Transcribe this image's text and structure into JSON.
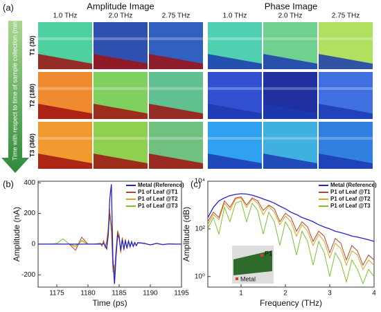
{
  "figure": {
    "panel_labels": [
      "(a)",
      "(b)",
      "(c)"
    ],
    "amplitude_title": "Amplitude Image",
    "phase_title": "Phase Image",
    "frequencies": [
      "1.0 THz",
      "2.0 THz",
      "2.75 THz"
    ],
    "time_labels": [
      "T1 (30)",
      "T2 (180)",
      "T3 (360)"
    ],
    "arrow_label": "Time with respect to time of sample collection (min)"
  },
  "chart_data": [
    {
      "type": "line",
      "xlabel": "Time (ps)",
      "ylabel": "Amplitude (nA)",
      "x": [
        1172,
        1173,
        1174,
        1175,
        1176,
        1177,
        1178,
        1179,
        1180,
        1181,
        1182,
        1182.25,
        1182.5,
        1182.75,
        1183,
        1183.25,
        1183.5,
        1183.75,
        1184,
        1184.25,
        1184.5,
        1184.75,
        1185,
        1185.25,
        1185.5,
        1185.75,
        1186,
        1186.25,
        1186.5,
        1186.75,
        1187,
        1187.25,
        1187.5,
        1187.75,
        1188,
        1189,
        1190,
        1191,
        1192,
        1193,
        1194,
        1195
      ],
      "xlim": [
        1172,
        1195
      ],
      "xticks": [
        1175,
        1180,
        1185,
        1190,
        1195
      ],
      "ylim": [
        -280,
        410
      ],
      "yticks": [
        -200,
        0,
        200,
        400
      ],
      "legend": "upper right",
      "series": [
        {
          "name": "Metal (Reference)",
          "color": "#2222cc",
          "values": [
            0,
            0,
            0,
            0,
            0,
            0,
            0,
            0,
            0,
            0,
            0,
            0,
            5,
            -10,
            -30,
            60,
            300,
            390,
            -100,
            -260,
            -80,
            60,
            40,
            -40,
            30,
            -30,
            20,
            -25,
            20,
            -15,
            15,
            -15,
            10,
            -10,
            10,
            5,
            -5,
            5,
            -3,
            2,
            0,
            0
          ]
        },
        {
          "name": "P1 of Leaf @T1",
          "color": "#b0452a",
          "values": [
            0,
            0,
            0,
            0,
            0,
            0,
            -40,
            45,
            0,
            0,
            5,
            -10,
            20,
            -20,
            10,
            80,
            200,
            120,
            -150,
            -200,
            -50,
            80,
            60,
            -50,
            40,
            -40,
            30,
            -30,
            20,
            -20,
            15,
            -15,
            10,
            -10,
            10,
            5,
            -5,
            5,
            -3,
            2,
            0,
            0
          ]
        },
        {
          "name": "P1 of Leaf @T2",
          "color": "#e0a020",
          "values": [
            0,
            0,
            0,
            0,
            0,
            0,
            -20,
            25,
            0,
            0,
            5,
            -15,
            25,
            -20,
            20,
            120,
            230,
            100,
            -180,
            -170,
            -30,
            90,
            50,
            -60,
            45,
            -35,
            35,
            -30,
            25,
            -20,
            20,
            -15,
            12,
            -10,
            8,
            5,
            -5,
            4,
            -3,
            2,
            0,
            0
          ]
        },
        {
          "name": "P1 of Leaf @T3",
          "color": "#7cc22a",
          "values": [
            0,
            0,
            0,
            5,
            35,
            0,
            -10,
            20,
            0,
            0,
            5,
            -10,
            15,
            -15,
            15,
            100,
            180,
            80,
            -120,
            -160,
            -40,
            70,
            50,
            -45,
            35,
            -35,
            30,
            -25,
            20,
            -20,
            15,
            -12,
            10,
            -8,
            8,
            4,
            -4,
            4,
            -2,
            2,
            0,
            0
          ]
        }
      ]
    },
    {
      "type": "line",
      "xlabel": "Frequency (THz)",
      "ylabel": "Amplitude (dB)",
      "log_y": true,
      "x": [
        0.25,
        0.375,
        0.5,
        0.625,
        0.75,
        0.875,
        1,
        1.125,
        1.25,
        1.375,
        1.5,
        1.625,
        1.75,
        1.875,
        2,
        2.125,
        2.25,
        2.375,
        2.5,
        2.625,
        2.75,
        2.875,
        3,
        3.125,
        3.25,
        3.375,
        3.5,
        3.625,
        3.75,
        3.875,
        4
      ],
      "xlim": [
        0.25,
        4
      ],
      "xticks": [
        1,
        2,
        3,
        4
      ],
      "ylim": [
        0.36,
        10000
      ],
      "yticks": [
        {
          "value": 1,
          "label": "10⁰"
        },
        {
          "value": 100,
          "label": "10²"
        },
        {
          "value": 10000,
          "label": "10⁴"
        }
      ],
      "legend": "upper right",
      "annotations": [
        "P1",
        "Metal"
      ],
      "series": [
        {
          "name": "Metal (Reference)",
          "color": "#2222cc",
          "values": [
            300,
            800,
            1500,
            2000,
            2500,
            2800,
            3000,
            2900,
            2600,
            2200,
            1800,
            1500,
            1200,
            900,
            700,
            500,
            400,
            300,
            250,
            200,
            150,
            120,
            100,
            80,
            70,
            60,
            50,
            45,
            40,
            35,
            30
          ]
        },
        {
          "name": "P1 of Leaf @T1",
          "color": "#b0452a",
          "values": [
            200,
            500,
            300,
            1500,
            800,
            2000,
            2200,
            1000,
            2000,
            1500,
            600,
            1000,
            700,
            200,
            450,
            300,
            80,
            200,
            120,
            30,
            80,
            50,
            10,
            40,
            25,
            5,
            20,
            12,
            3,
            8,
            5
          ]
        },
        {
          "name": "P1 of Leaf @T2",
          "color": "#e0a020",
          "values": [
            150,
            400,
            250,
            1200,
            600,
            1800,
            2000,
            800,
            1800,
            1200,
            400,
            900,
            500,
            150,
            350,
            200,
            50,
            150,
            80,
            20,
            60,
            30,
            6,
            25,
            15,
            3,
            12,
            8,
            2,
            5,
            3
          ]
        },
        {
          "name": "P1 of Leaf @T3",
          "color": "#7cc22a",
          "values": [
            100,
            300,
            60,
            800,
            200,
            1200,
            1500,
            200,
            1200,
            600,
            60,
            500,
            200,
            20,
            200,
            80,
            8,
            80,
            30,
            3,
            30,
            10,
            1,
            10,
            4,
            0.6,
            5,
            2,
            0.5,
            2,
            1
          ]
        }
      ]
    }
  ]
}
